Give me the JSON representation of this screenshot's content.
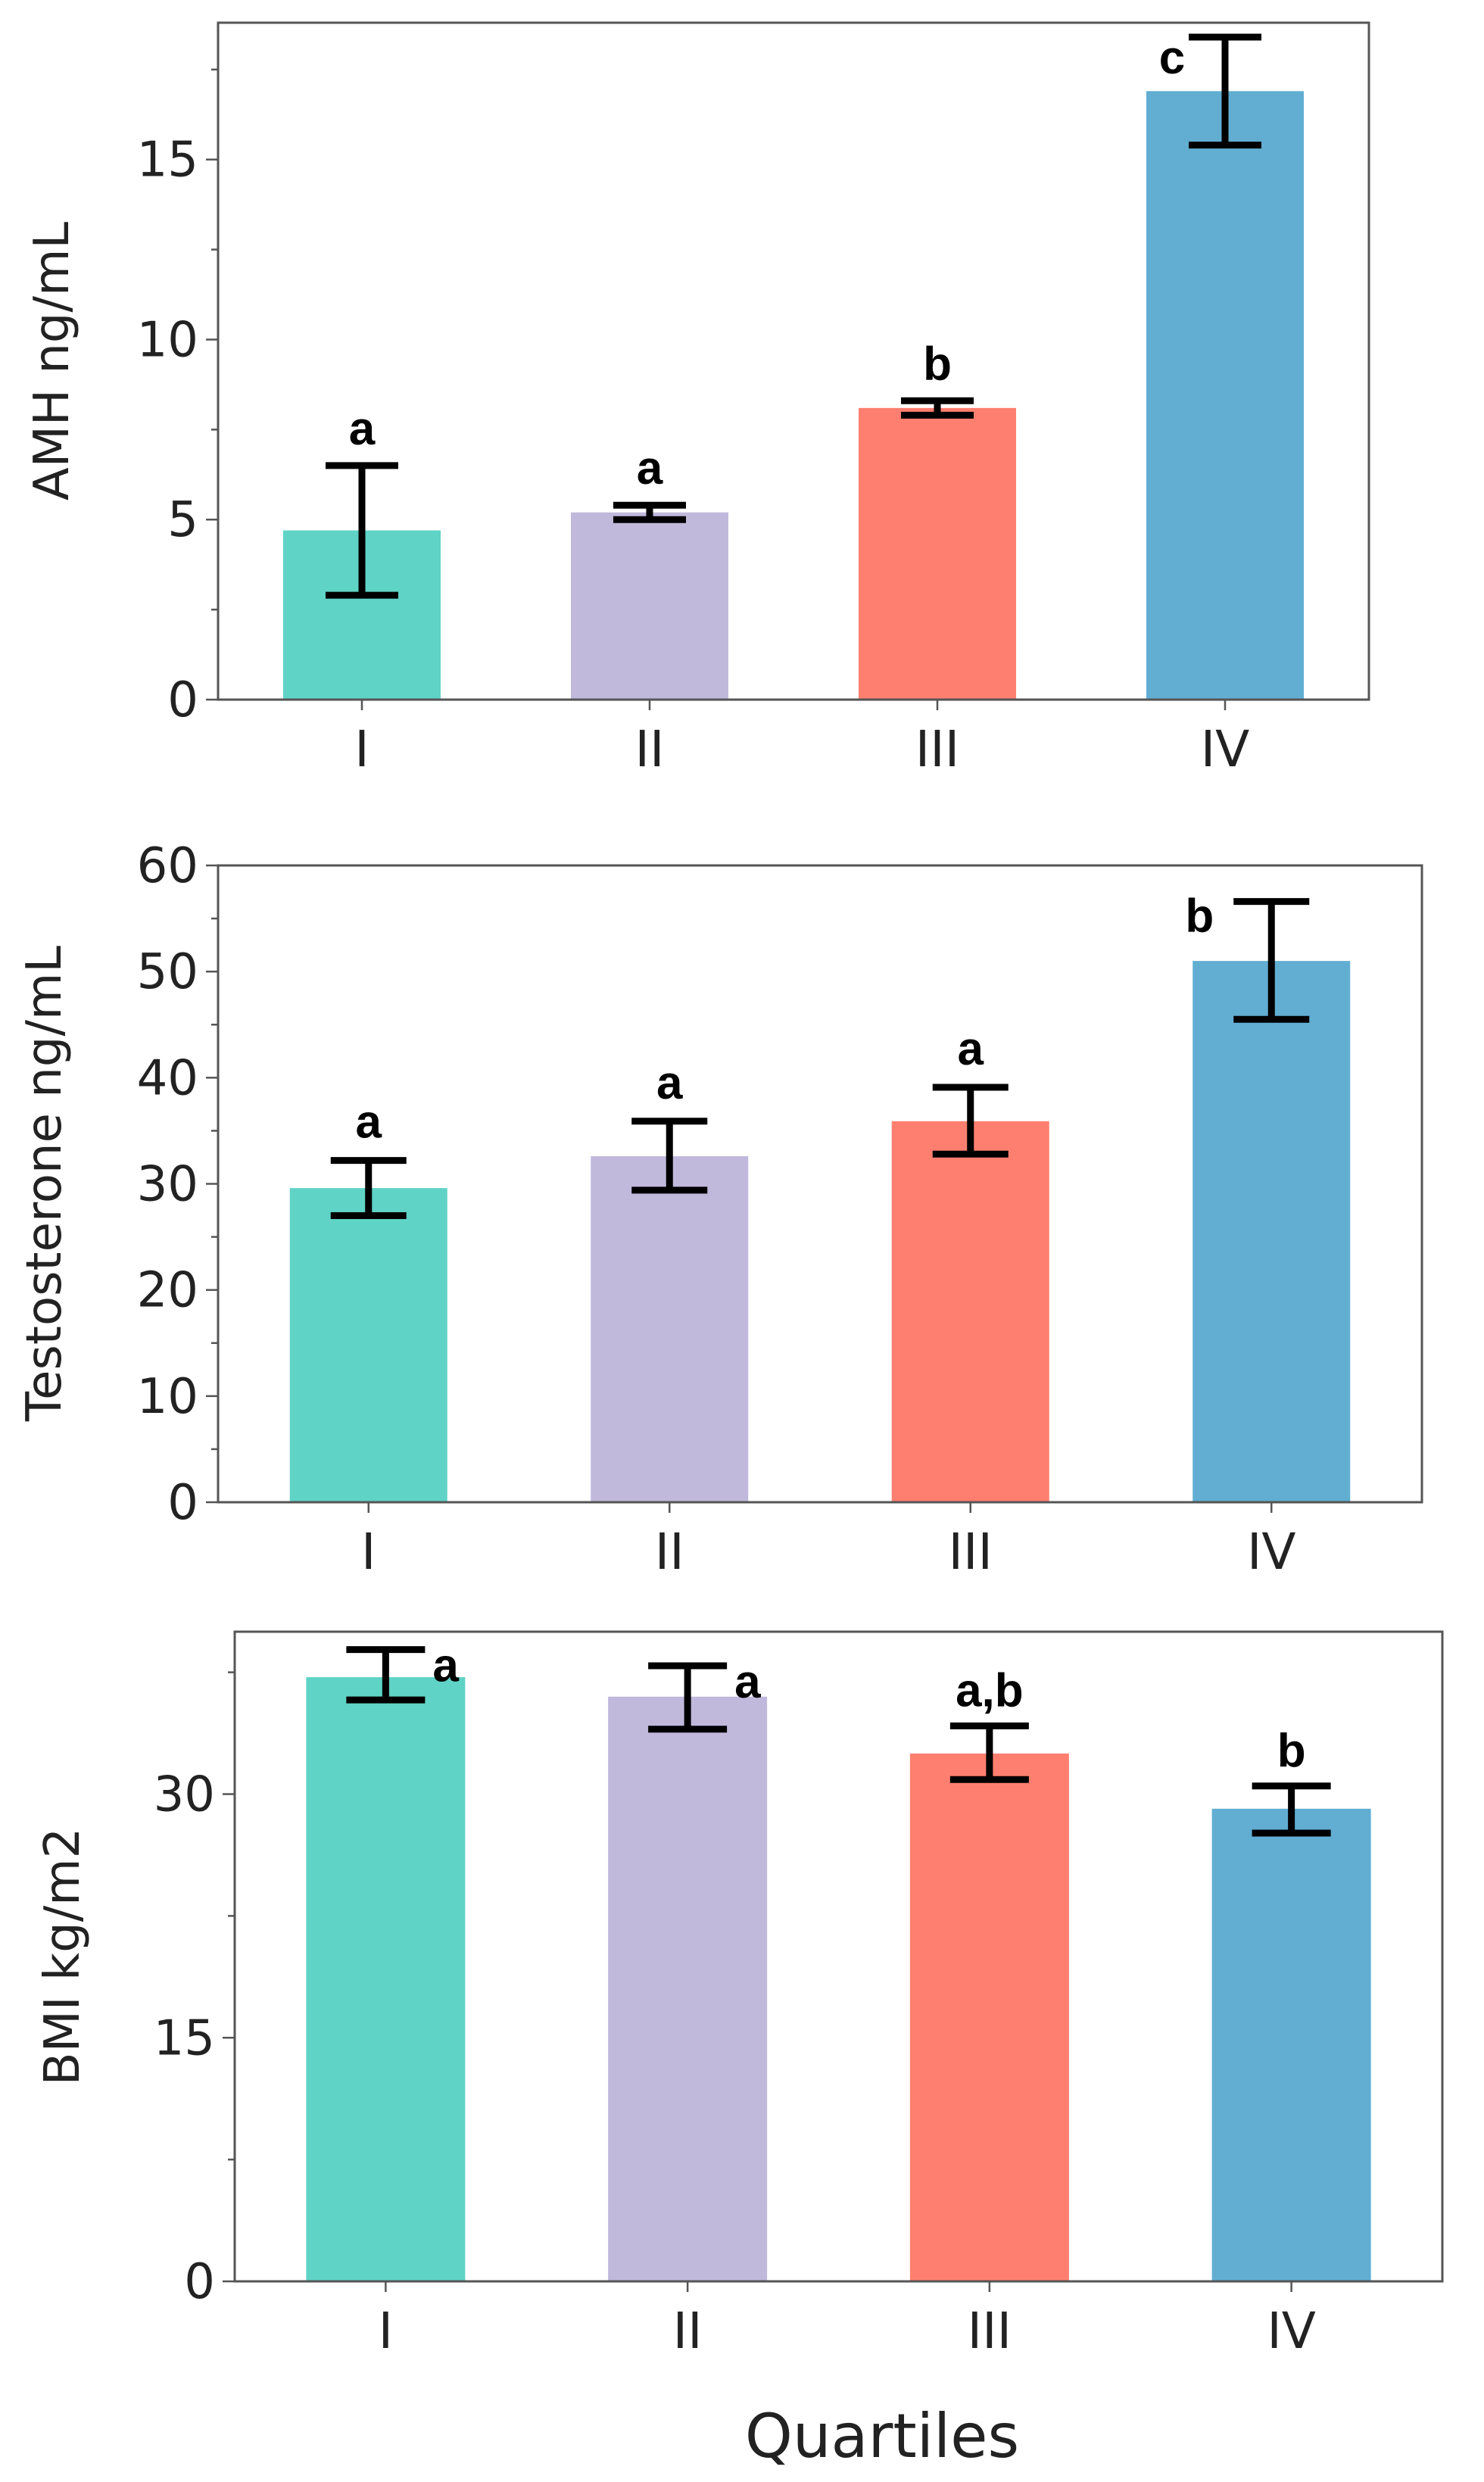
{
  "chart_data": [
    {
      "type": "bar",
      "ylabel": "AMH ng/mL",
      "categories": [
        "I",
        "II",
        "III",
        "IV"
      ],
      "values": [
        4.7,
        5.2,
        8.1,
        16.9
      ],
      "error_low": [
        2.9,
        5.0,
        7.9,
        15.4
      ],
      "error_high": [
        6.5,
        5.4,
        8.3,
        18.4
      ],
      "significance": [
        "a",
        "a",
        "b",
        "c"
      ],
      "ylim": [
        0,
        18.8
      ],
      "yticks": [
        0,
        5,
        10,
        15
      ],
      "colors": [
        "#5fd3c6",
        "#c0b9dc",
        "#fe7f70",
        "#61aed2"
      ]
    },
    {
      "type": "bar",
      "ylabel": "Testosterone ng/mL",
      "categories": [
        "I",
        "II",
        "III",
        "IV"
      ],
      "values": [
        29.6,
        32.6,
        35.9,
        51.0
      ],
      "error_low": [
        27.0,
        29.4,
        32.8,
        45.5
      ],
      "error_high": [
        32.2,
        35.9,
        39.1,
        56.6
      ],
      "significance": [
        "a",
        "a",
        "a",
        "b"
      ],
      "ylim": [
        0,
        60
      ],
      "yticks": [
        0,
        10,
        20,
        30,
        40,
        50,
        60
      ],
      "colors": [
        "#5fd3c6",
        "#c0b9dc",
        "#fe7f70",
        "#61aed2"
      ]
    },
    {
      "type": "bar",
      "ylabel": "BMI kg/m2",
      "xlabel": "Quartiles",
      "categories": [
        "I",
        "II",
        "III",
        "IV"
      ],
      "values": [
        37.2,
        36.0,
        32.5,
        29.1
      ],
      "error_low": [
        35.8,
        34.0,
        30.9,
        27.6
      ],
      "error_high": [
        38.9,
        37.9,
        34.2,
        30.5
      ],
      "significance": [
        "a",
        "a",
        "a,b",
        "b"
      ],
      "ylim": [
        0,
        40
      ],
      "yticks": [
        0,
        15,
        30
      ],
      "colors": [
        "#5fd3c6",
        "#c0b9dc",
        "#fe7f70",
        "#61aed2"
      ]
    }
  ]
}
